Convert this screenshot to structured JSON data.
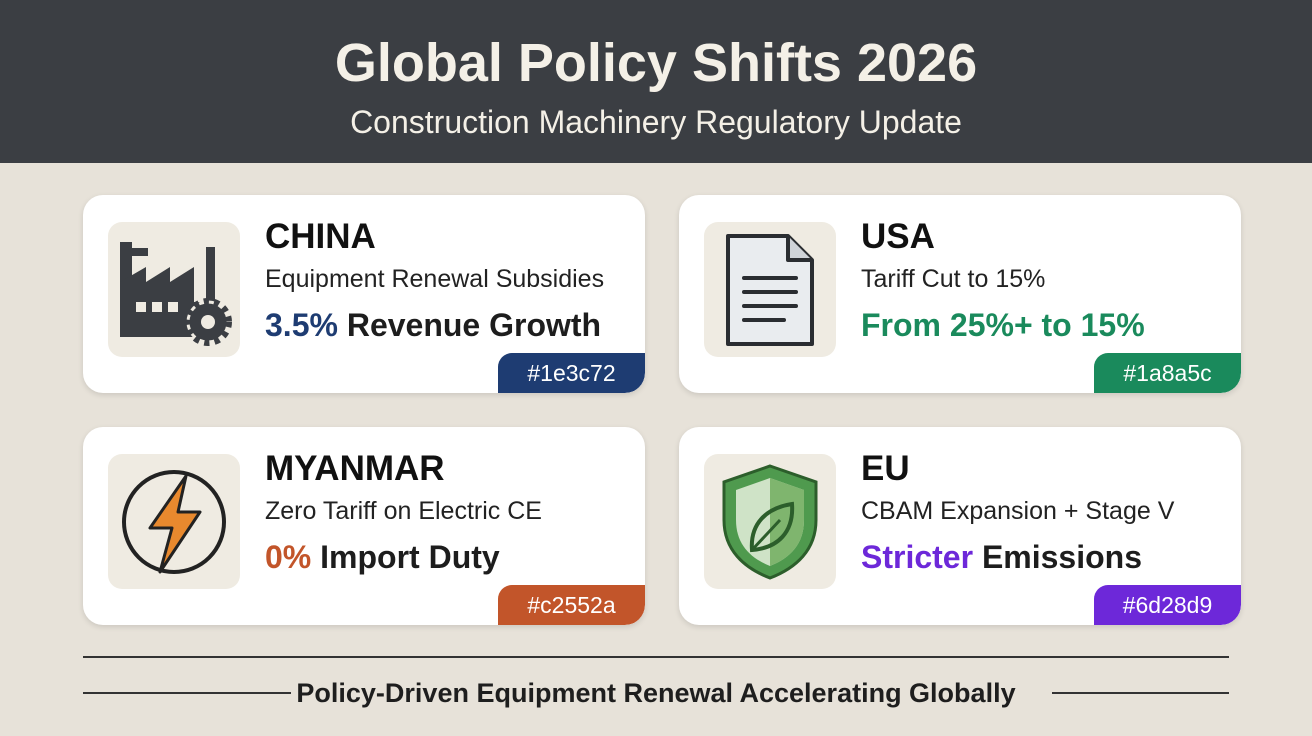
{
  "header": {
    "title": "Global Policy Shifts 2026",
    "subtitle": "Construction Machinery Regulatory Update"
  },
  "cards": [
    {
      "country": "CHINA",
      "policy": "Equipment Renewal Subsidies",
      "highlight": "3.5%",
      "rest": " Revenue Growth",
      "tag": "#1e3c72"
    },
    {
      "country": "USA",
      "policy": "Tariff Cut to 15%",
      "highlight": "From 25%+ to 15%",
      "tag": "#1a8a5c"
    },
    {
      "country": "MYANMAR",
      "policy": "Zero Tariff on Electric CE",
      "highlight": "0%",
      "rest": " Import Duty",
      "tag": "#c2552a"
    },
    {
      "country": "EU",
      "policy": "CBAM Expansion + Stage V",
      "highlight": "Stricter",
      "rest": " Emissions",
      "tag": "#6d28d9"
    }
  ],
  "footer": "Policy-Driven Equipment Renewal Accelerating Globally"
}
